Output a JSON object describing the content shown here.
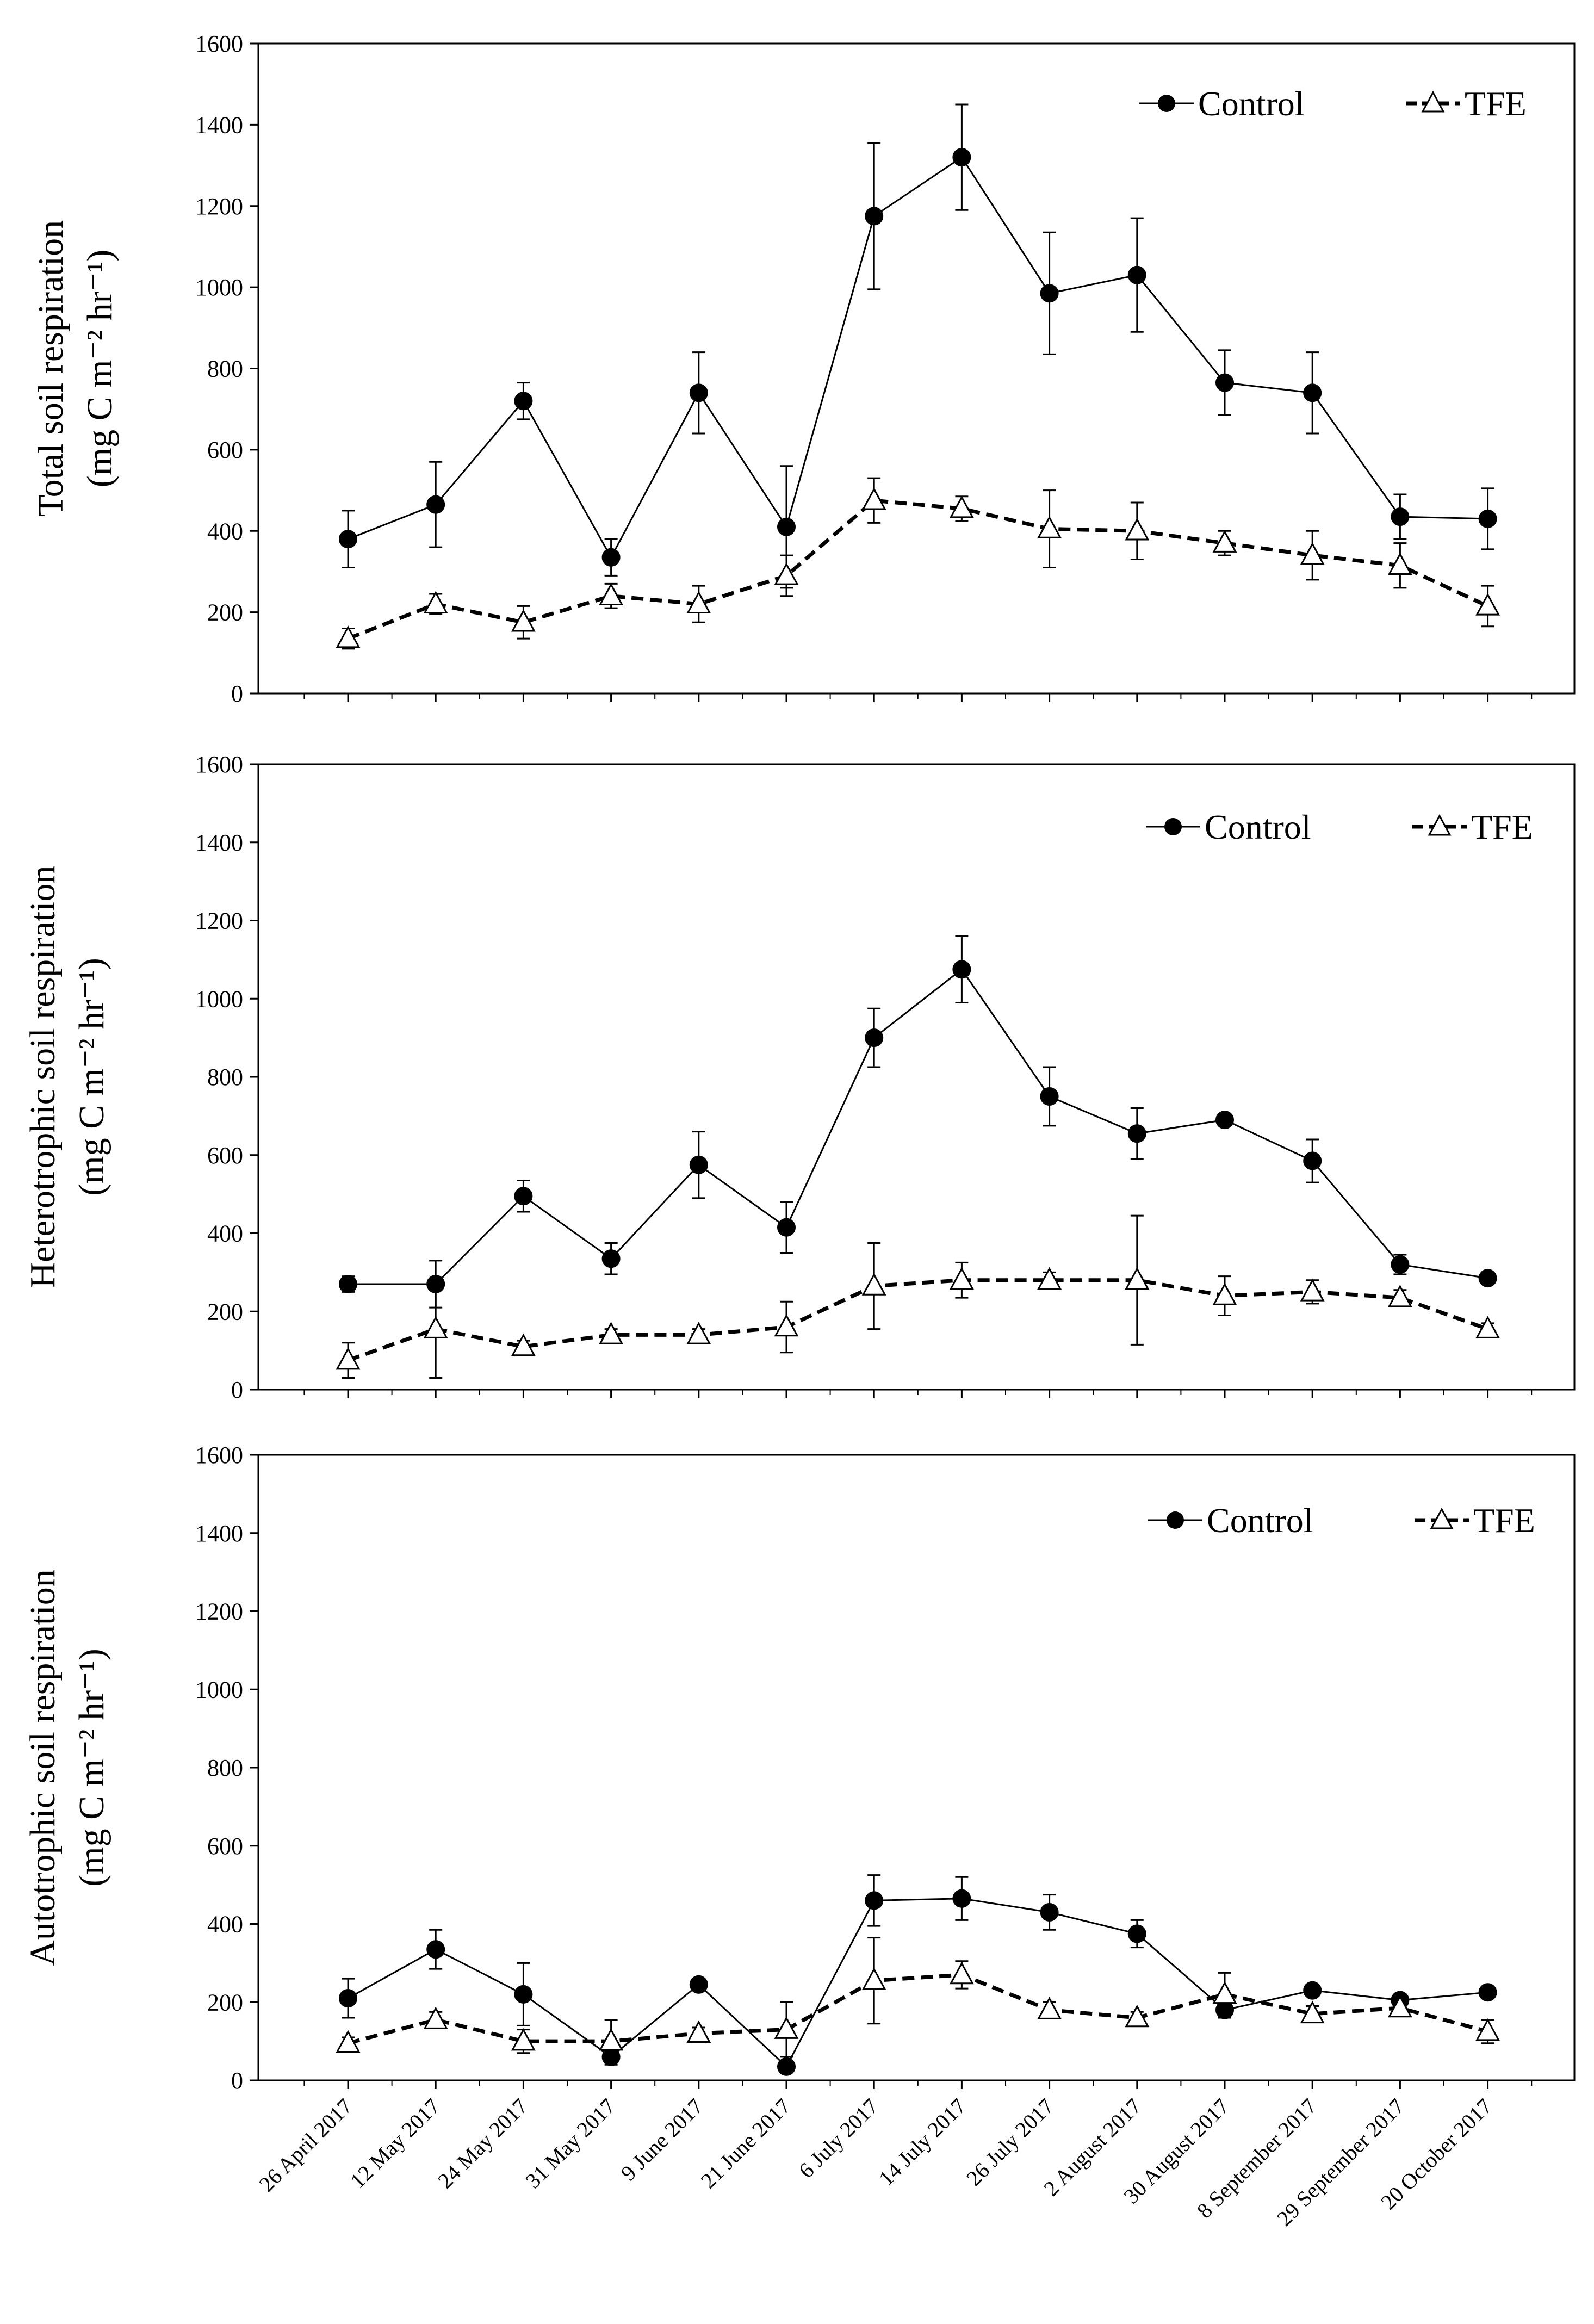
{
  "figure": {
    "categories": [
      "26 April 2017",
      "12 May 2017",
      "24 May 2017",
      "31 May 2017",
      "9 June 2017",
      "21 June 2017",
      "6 July 2017",
      "14 July 2017",
      "26 July 2017",
      "2 August 2017",
      "30 August 2017",
      "8 September 2017",
      "29 September 2017",
      "20 October 2017"
    ],
    "y_ticks": [
      "0",
      "200",
      "400",
      "600",
      "800",
      "1000",
      "1200",
      "1400",
      "1600"
    ],
    "legend": {
      "control": "Control",
      "tfe": "TFE"
    },
    "colors": {
      "axis": "#000000",
      "marker_fill_control": "#000000",
      "marker_fill_tfe": "#ffffff"
    }
  },
  "chart_data": [
    {
      "type": "line",
      "ylabel_line1": "Total soil respiration",
      "ylabel_line2": "(mg C m⁻² hr⁻¹)",
      "ylim": [
        0,
        1600
      ],
      "legend_position": "top-right",
      "categories": [
        "26 April 2017",
        "12 May 2017",
        "24 May 2017",
        "31 May 2017",
        "9 June 2017",
        "21 June 2017",
        "6 July 2017",
        "14 July 2017",
        "26 July 2017",
        "2 August 2017",
        "30 August 2017",
        "8 September 2017",
        "29 September 2017",
        "20 October 2017"
      ],
      "series": [
        {
          "name": "Control",
          "marker": "filled-circle",
          "line": "solid",
          "values": [
            380,
            465,
            720,
            335,
            740,
            410,
            1175,
            1320,
            985,
            1030,
            765,
            740,
            435,
            430
          ],
          "errors": [
            70,
            105,
            45,
            45,
            100,
            150,
            180,
            130,
            150,
            140,
            80,
            100,
            55,
            75
          ]
        },
        {
          "name": "TFE",
          "marker": "open-triangle",
          "line": "dashed",
          "values": [
            135,
            220,
            175,
            240,
            220,
            290,
            475,
            455,
            405,
            400,
            370,
            340,
            315,
            215
          ],
          "errors": [
            25,
            25,
            40,
            30,
            45,
            50,
            55,
            30,
            95,
            70,
            30,
            60,
            55,
            50
          ]
        }
      ]
    },
    {
      "type": "line",
      "ylabel_line1": "Heterotrophic soil respiration",
      "ylabel_line2": "(mg C m⁻² hr⁻¹)",
      "ylim": [
        0,
        1600
      ],
      "legend_position": "top-right",
      "categories": [
        "26 April 2017",
        "12 May 2017",
        "24 May 2017",
        "31 May 2017",
        "9 June 2017",
        "21 June 2017",
        "6 July 2017",
        "14 July 2017",
        "26 July 2017",
        "2 August 2017",
        "30 August 2017",
        "8 September 2017",
        "29 September 2017",
        "20 October 2017"
      ],
      "series": [
        {
          "name": "Control",
          "marker": "filled-circle",
          "line": "solid",
          "values": [
            270,
            270,
            495,
            335,
            575,
            415,
            900,
            1075,
            750,
            655,
            690,
            585,
            320,
            285
          ],
          "errors": [
            20,
            60,
            40,
            40,
            85,
            65,
            75,
            85,
            75,
            65,
            15,
            55,
            25,
            15
          ]
        },
        {
          "name": "TFE",
          "marker": "open-triangle",
          "line": "dashed",
          "values": [
            75,
            155,
            110,
            140,
            140,
            160,
            265,
            280,
            280,
            280,
            240,
            250,
            235,
            155
          ],
          "errors": [
            45,
            125,
            15,
            15,
            15,
            65,
            110,
            45,
            20,
            165,
            50,
            30,
            20,
            15
          ]
        }
      ]
    },
    {
      "type": "line",
      "ylabel_line1": "Autotrophic soil respiration",
      "ylabel_line2": "(mg C m⁻² hr⁻¹)",
      "ylim": [
        0,
        1600
      ],
      "legend_position": "top-right",
      "categories": [
        "26 April 2017",
        "12 May 2017",
        "24 May 2017",
        "31 May 2017",
        "9 June 2017",
        "21 June 2017",
        "6 July 2017",
        "14 July 2017",
        "26 July 2017",
        "2 August 2017",
        "30 August 2017",
        "8 September 2017",
        "29 September 2017",
        "20 October 2017"
      ],
      "series": [
        {
          "name": "Control",
          "marker": "filled-circle",
          "line": "solid",
          "values": [
            210,
            335,
            220,
            60,
            245,
            35,
            460,
            465,
            430,
            375,
            180,
            230,
            205,
            225
          ],
          "errors": [
            50,
            50,
            80,
            20,
            15,
            15,
            65,
            55,
            45,
            35,
            20,
            15,
            15,
            15
          ]
        },
        {
          "name": "TFE",
          "marker": "open-triangle",
          "line": "dashed",
          "values": [
            95,
            155,
            100,
            100,
            120,
            130,
            255,
            270,
            180,
            160,
            220,
            170,
            185,
            125
          ],
          "errors": [
            15,
            20,
            30,
            55,
            15,
            70,
            110,
            35,
            20,
            15,
            55,
            20,
            20,
            30
          ]
        }
      ]
    }
  ]
}
